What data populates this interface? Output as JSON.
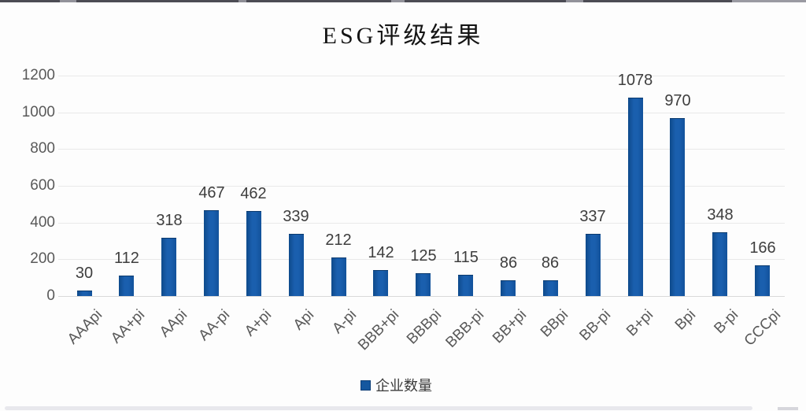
{
  "chart_data": {
    "type": "bar",
    "title": "ESG评级结果",
    "legend_label": "企业数量",
    "legend_position": "bottom",
    "grid": true,
    "categories": [
      "AAApi",
      "AA+pi",
      "AApi",
      "AA-pi",
      "A+pi",
      "Api",
      "A-pi",
      "BBB+pi",
      "BBBpi",
      "BBB-pi",
      "BB+pi",
      "BBpi",
      "BB-pi",
      "B+pi",
      "Bpi",
      "B-pi",
      "CCCpi"
    ],
    "values": [
      30,
      112,
      318,
      467,
      462,
      339,
      212,
      142,
      125,
      115,
      86,
      86,
      337,
      1078,
      970,
      348,
      166
    ],
    "ylim": [
      0,
      1200
    ],
    "yticks": [
      0,
      200,
      400,
      600,
      800,
      1000,
      1200
    ],
    "colors": {
      "bar": "#15579f",
      "bar_edge": "#0d3e77",
      "gridline": "#e9e9e9",
      "axis_text": "#595959",
      "value_label": "#3e3e3e",
      "title_text": "#141414"
    }
  }
}
